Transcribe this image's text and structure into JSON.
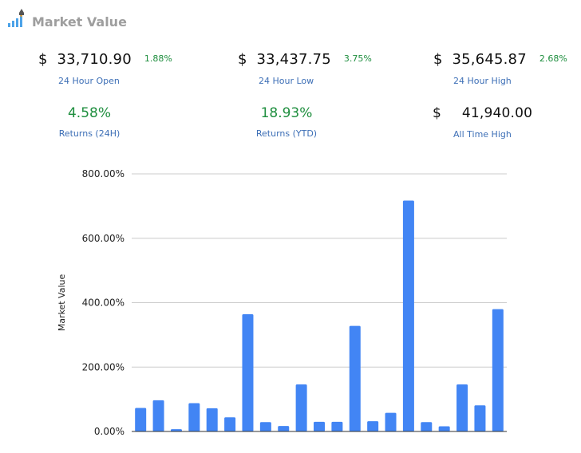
{
  "header": {
    "title": "Market Value",
    "logo_icon": "chart-rocket-icon"
  },
  "stats": {
    "open": {
      "currency": "$",
      "value": "33,710.90",
      "change": "1.88%",
      "label": "24 Hour Open"
    },
    "low": {
      "currency": "$",
      "value": "33,437.75",
      "change": "3.75%",
      "label": "24 Hour Low"
    },
    "high": {
      "currency": "$",
      "value": "35,645.87",
      "change": "2.68%",
      "label": "24 Hour High"
    },
    "returns_24h": {
      "value": "4.58%",
      "label": "Returns (24H)"
    },
    "returns_ytd": {
      "value": "18.93%",
      "label": "Returns (YTD)"
    },
    "ath": {
      "currency": "$",
      "value": "41,940.00",
      "label": "All Time High"
    }
  },
  "colors": {
    "bar": "#4285f4",
    "positive": "#1e8e3e",
    "label": "#3d6fb6",
    "title": "#9e9e9e"
  },
  "chart_data": {
    "type": "bar",
    "ylabel": "Market Value",
    "ylim": [
      0,
      800
    ],
    "yticks": [
      0,
      200,
      400,
      600,
      800
    ],
    "ytick_labels": [
      "0.00%",
      "200.00%",
      "400.00%",
      "600.00%",
      "800.00%"
    ],
    "grid": true,
    "values": [
      73,
      97,
      7,
      88,
      72,
      44,
      364,
      29,
      17,
      146,
      30,
      30,
      328,
      32,
      58,
      717,
      29,
      16,
      146,
      81,
      380
    ]
  }
}
